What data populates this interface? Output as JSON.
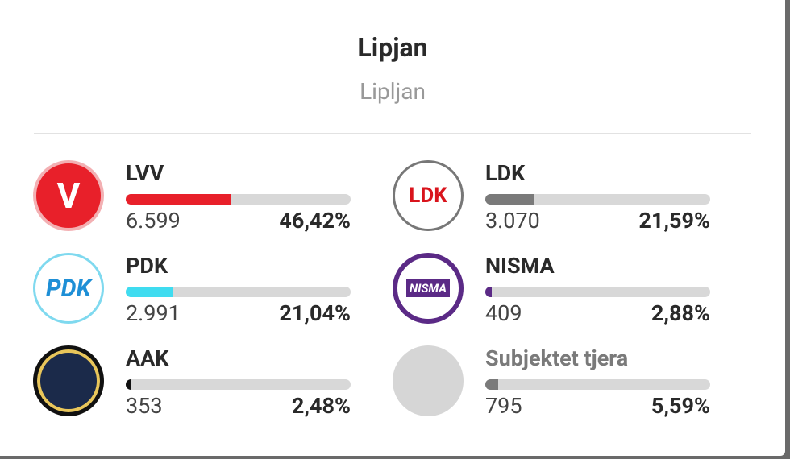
{
  "header": {
    "title": "Lipjan",
    "subtitle": "Lipljan"
  },
  "parties": [
    {
      "name": "LVV",
      "logo": "V",
      "color": "#e8202a",
      "logo_color": "#e8202a",
      "votes": "6.599",
      "share": 46.42,
      "share_label": "46,42%"
    },
    {
      "name": "LDK",
      "logo": "LDK",
      "color": "#7a7a7a",
      "logo_color": "#d9141c",
      "votes": "3.070",
      "share": 21.59,
      "share_label": "21,59%"
    },
    {
      "name": "PDK",
      "logo": "PDK",
      "color": "#3fdcf0",
      "logo_color": "#1e8fd6",
      "votes": "2.991",
      "share": 21.04,
      "share_label": "21,04%"
    },
    {
      "name": "NISMA",
      "logo": "NISMA",
      "color": "#5b2a86",
      "logo_color": "#5b2a86",
      "votes": "409",
      "share": 2.88,
      "share_label": "2,88%"
    },
    {
      "name": "AAK",
      "color": "#111111",
      "logo_color": "#1b2a4a",
      "votes": "353",
      "share": 2.48,
      "share_label": "2,48%"
    },
    {
      "name": "Subjektet tjera",
      "color": "#7a7a7a",
      "logo_color": "#d6d6d6",
      "votes": "795",
      "share": 5.59,
      "share_label": "5,59%"
    }
  ]
}
